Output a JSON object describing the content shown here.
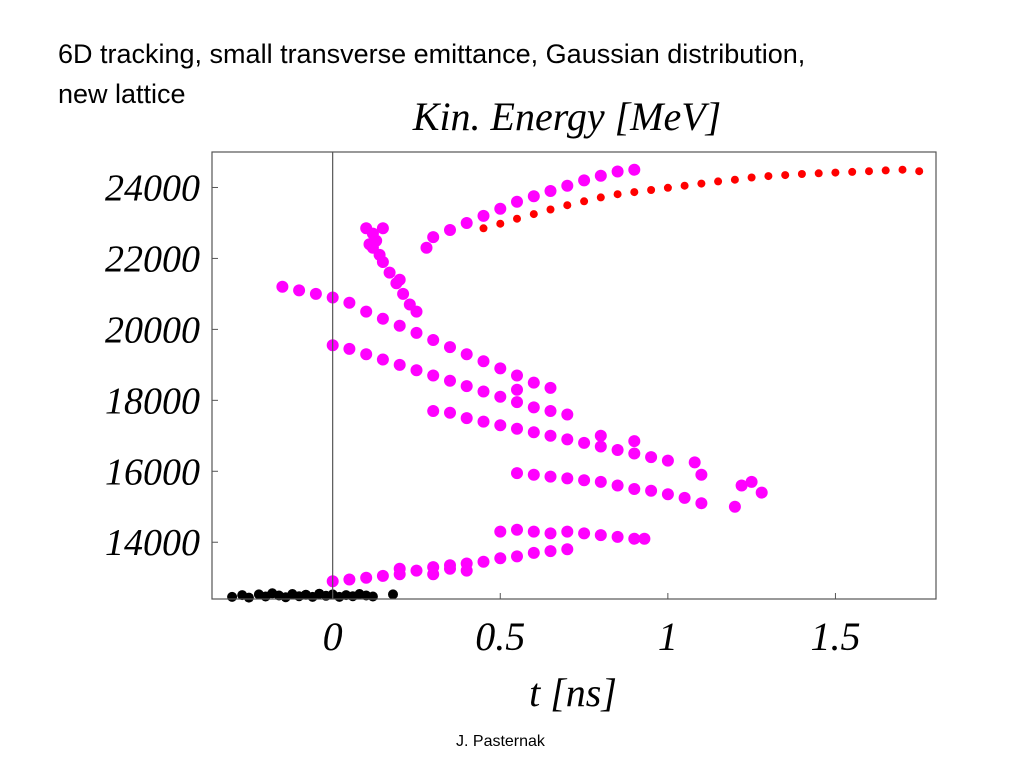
{
  "slide": {
    "title_line1": "6D tracking, small transverse emittance, Gaussian distribution,",
    "title_line2": "new lattice",
    "footer": "J. Pasternak"
  },
  "chart_data": {
    "type": "scatter",
    "title": "Kin. Energy [MeV]",
    "ylabel": "",
    "xlabel": "t [ns]",
    "xlim": [
      -0.36,
      1.8
    ],
    "ylim": [
      12400,
      25000
    ],
    "x_ticks": [
      {
        "value": 0,
        "label": "0"
      },
      {
        "value": 0.5,
        "label": "0.5"
      },
      {
        "value": 1,
        "label": "1"
      },
      {
        "value": 1.5,
        "label": "1.5"
      }
    ],
    "y_ticks": [
      {
        "value": 14000,
        "label": "14000"
      },
      {
        "value": 16000,
        "label": "16000"
      },
      {
        "value": 18000,
        "label": "18000"
      },
      {
        "value": 20000,
        "label": "20000"
      },
      {
        "value": 22000,
        "label": "22000"
      },
      {
        "value": 24000,
        "label": "24000"
      }
    ],
    "grid": false,
    "zero_line": true,
    "colors": {
      "black": "#000000",
      "magenta": "#ff00ff",
      "red": "#ff0000"
    },
    "series": [
      {
        "color": "#000000",
        "r": 5,
        "points": [
          [
            -0.3,
            12460
          ],
          [
            -0.27,
            12510
          ],
          [
            -0.25,
            12440
          ],
          [
            -0.22,
            12530
          ],
          [
            -0.2,
            12470
          ],
          [
            -0.18,
            12560
          ],
          [
            -0.16,
            12500
          ],
          [
            -0.14,
            12450
          ],
          [
            -0.12,
            12540
          ],
          [
            -0.1,
            12480
          ],
          [
            -0.08,
            12520
          ],
          [
            -0.06,
            12460
          ],
          [
            -0.04,
            12550
          ],
          [
            -0.02,
            12490
          ],
          [
            0.0,
            12530
          ],
          [
            0.02,
            12460
          ],
          [
            0.04,
            12510
          ],
          [
            0.06,
            12480
          ],
          [
            0.08,
            12540
          ],
          [
            0.1,
            12500
          ],
          [
            0.12,
            12470
          ],
          [
            0.18,
            12530
          ]
        ]
      },
      {
        "color": "#ff0000",
        "r": 4,
        "points": [
          [
            0.45,
            22850
          ],
          [
            0.5,
            22980
          ],
          [
            0.55,
            23120
          ],
          [
            0.6,
            23250
          ],
          [
            0.65,
            23380
          ],
          [
            0.7,
            23500
          ],
          [
            0.75,
            23610
          ],
          [
            0.8,
            23720
          ],
          [
            0.85,
            23810
          ],
          [
            0.9,
            23870
          ],
          [
            0.95,
            23930
          ],
          [
            1.0,
            23990
          ],
          [
            1.05,
            24050
          ],
          [
            1.1,
            24110
          ],
          [
            1.15,
            24170
          ],
          [
            1.2,
            24220
          ],
          [
            1.25,
            24280
          ],
          [
            1.3,
            24320
          ],
          [
            1.35,
            24350
          ],
          [
            1.4,
            24380
          ],
          [
            1.45,
            24400
          ],
          [
            1.5,
            24420
          ],
          [
            1.55,
            24440
          ],
          [
            1.6,
            24460
          ],
          [
            1.65,
            24480
          ],
          [
            1.7,
            24500
          ],
          [
            1.75,
            24460
          ]
        ]
      },
      {
        "color": "#ff00ff",
        "r": 6,
        "points": [
          [
            0.1,
            22850
          ],
          [
            0.12,
            22700
          ],
          [
            0.13,
            22500
          ],
          [
            0.12,
            22300
          ],
          [
            0.14,
            22100
          ],
          [
            0.15,
            21900
          ],
          [
            0.17,
            21600
          ],
          [
            0.19,
            21300
          ],
          [
            0.21,
            21000
          ],
          [
            0.23,
            20700
          ],
          [
            0.15,
            22850
          ],
          [
            0.11,
            22400
          ],
          [
            0.2,
            21400
          ],
          [
            0.25,
            20500
          ],
          [
            0.28,
            22300
          ],
          [
            0.3,
            22600
          ],
          [
            0.35,
            22800
          ],
          [
            0.4,
            23000
          ],
          [
            0.45,
            23200
          ],
          [
            0.5,
            23400
          ],
          [
            0.55,
            23600
          ],
          [
            0.6,
            23750
          ],
          [
            0.65,
            23900
          ],
          [
            0.7,
            24050
          ],
          [
            0.75,
            24200
          ],
          [
            0.8,
            24330
          ],
          [
            0.85,
            24450
          ],
          [
            0.9,
            24500
          ],
          [
            -0.15,
            21200
          ],
          [
            -0.1,
            21100
          ],
          [
            -0.05,
            21000
          ],
          [
            0.0,
            20900
          ],
          [
            0.05,
            20750
          ],
          [
            0.1,
            20500
          ],
          [
            0.15,
            20300
          ],
          [
            0.2,
            20100
          ],
          [
            0.25,
            19900
          ],
          [
            0.3,
            19700
          ],
          [
            0.35,
            19500
          ],
          [
            0.4,
            19300
          ],
          [
            0.45,
            19100
          ],
          [
            0.5,
            18900
          ],
          [
            0.55,
            18700
          ],
          [
            0.6,
            18500
          ],
          [
            0.65,
            18350
          ],
          [
            0.55,
            18300
          ],
          [
            0.0,
            19550
          ],
          [
            0.05,
            19450
          ],
          [
            0.1,
            19300
          ],
          [
            0.15,
            19150
          ],
          [
            0.2,
            19000
          ],
          [
            0.25,
            18850
          ],
          [
            0.3,
            18700
          ],
          [
            0.35,
            18550
          ],
          [
            0.4,
            18400
          ],
          [
            0.45,
            18250
          ],
          [
            0.5,
            18100
          ],
          [
            0.55,
            17950
          ],
          [
            0.6,
            17800
          ],
          [
            0.65,
            17700
          ],
          [
            0.7,
            17600
          ],
          [
            0.3,
            17700
          ],
          [
            0.35,
            17650
          ],
          [
            0.4,
            17500
          ],
          [
            0.45,
            17400
          ],
          [
            0.5,
            17300
          ],
          [
            0.55,
            17200
          ],
          [
            0.6,
            17100
          ],
          [
            0.65,
            17000
          ],
          [
            0.7,
            16900
          ],
          [
            0.75,
            16800
          ],
          [
            0.8,
            16700
          ],
          [
            0.85,
            16600
          ],
          [
            0.9,
            16500
          ],
          [
            0.95,
            16400
          ],
          [
            1.0,
            16300
          ],
          [
            0.8,
            17000
          ],
          [
            0.9,
            16850
          ],
          [
            1.08,
            16250
          ],
          [
            1.1,
            15900
          ],
          [
            0.55,
            15950
          ],
          [
            0.6,
            15900
          ],
          [
            0.65,
            15850
          ],
          [
            0.7,
            15800
          ],
          [
            0.75,
            15750
          ],
          [
            0.8,
            15700
          ],
          [
            0.85,
            15600
          ],
          [
            0.9,
            15500
          ],
          [
            0.95,
            15450
          ],
          [
            1.0,
            15350
          ],
          [
            1.05,
            15250
          ],
          [
            1.1,
            15100
          ],
          [
            1.2,
            15000
          ],
          [
            1.22,
            15600
          ],
          [
            1.25,
            15700
          ],
          [
            1.28,
            15400
          ],
          [
            0.5,
            14300
          ],
          [
            0.55,
            14350
          ],
          [
            0.6,
            14300
          ],
          [
            0.65,
            14250
          ],
          [
            0.7,
            14300
          ],
          [
            0.75,
            14250
          ],
          [
            0.8,
            14200
          ],
          [
            0.85,
            14150
          ],
          [
            0.9,
            14100
          ],
          [
            0.93,
            14100
          ],
          [
            0.0,
            12900
          ],
          [
            0.05,
            12950
          ],
          [
            0.1,
            13000
          ],
          [
            0.15,
            13050
          ],
          [
            0.2,
            13100
          ],
          [
            0.25,
            13200
          ],
          [
            0.3,
            13300
          ],
          [
            0.35,
            13350
          ],
          [
            0.4,
            13400
          ],
          [
            0.45,
            13450
          ],
          [
            0.5,
            13550
          ],
          [
            0.55,
            13600
          ],
          [
            0.6,
            13700
          ],
          [
            0.65,
            13750
          ],
          [
            0.7,
            13800
          ],
          [
            0.2,
            13250
          ],
          [
            0.3,
            13100
          ],
          [
            0.35,
            13250
          ],
          [
            0.4,
            13200
          ]
        ]
      }
    ]
  }
}
